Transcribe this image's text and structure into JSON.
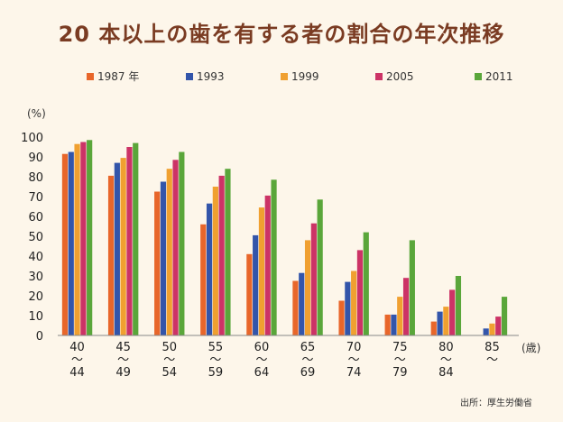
{
  "chart_data": {
    "type": "bar",
    "title": "20 本以上の歯を有する者の割合の年次推移",
    "ylabel": "(%)",
    "xlabel": "(歳)",
    "ylim": [
      0,
      100
    ],
    "yticks": [
      0,
      10,
      20,
      30,
      40,
      50,
      60,
      70,
      80,
      90,
      100
    ],
    "categories": [
      [
        "40",
        "〜",
        "44"
      ],
      [
        "45",
        "〜",
        "49"
      ],
      [
        "50",
        "〜",
        "54"
      ],
      [
        "55",
        "〜",
        "59"
      ],
      [
        "60",
        "〜",
        "64"
      ],
      [
        "65",
        "〜",
        "69"
      ],
      [
        "70",
        "〜",
        "74"
      ],
      [
        "75",
        "〜",
        "79"
      ],
      [
        "80",
        "〜",
        "84"
      ],
      [
        "85",
        "〜",
        ""
      ]
    ],
    "series": [
      {
        "name": "1987 年",
        "color": "#e8662a",
        "values": [
          91.5,
          80.5,
          72.5,
          56,
          41,
          27.5,
          17.5,
          10.5,
          7,
          null
        ]
      },
      {
        "name": "1993",
        "color": "#3355aa",
        "values": [
          92.5,
          87,
          77.5,
          66.5,
          50.5,
          31.5,
          27,
          10.5,
          12,
          3.5
        ]
      },
      {
        "name": "1999",
        "color": "#f0a030",
        "values": [
          96.5,
          89.5,
          84,
          75,
          64.5,
          48,
          32.5,
          19.5,
          14.5,
          6
        ]
      },
      {
        "name": "2005",
        "color": "#cc3366",
        "values": [
          97.5,
          95,
          88.5,
          80.5,
          70.5,
          56.5,
          43,
          29,
          23,
          9.5
        ]
      },
      {
        "name": "2011",
        "color": "#5aa63a",
        "values": [
          98.5,
          97,
          92.5,
          84,
          78.5,
          68.5,
          52,
          48,
          30,
          19.5
        ]
      }
    ],
    "legend_position": "top",
    "grid": false,
    "source": "出所：厚生労働省"
  }
}
